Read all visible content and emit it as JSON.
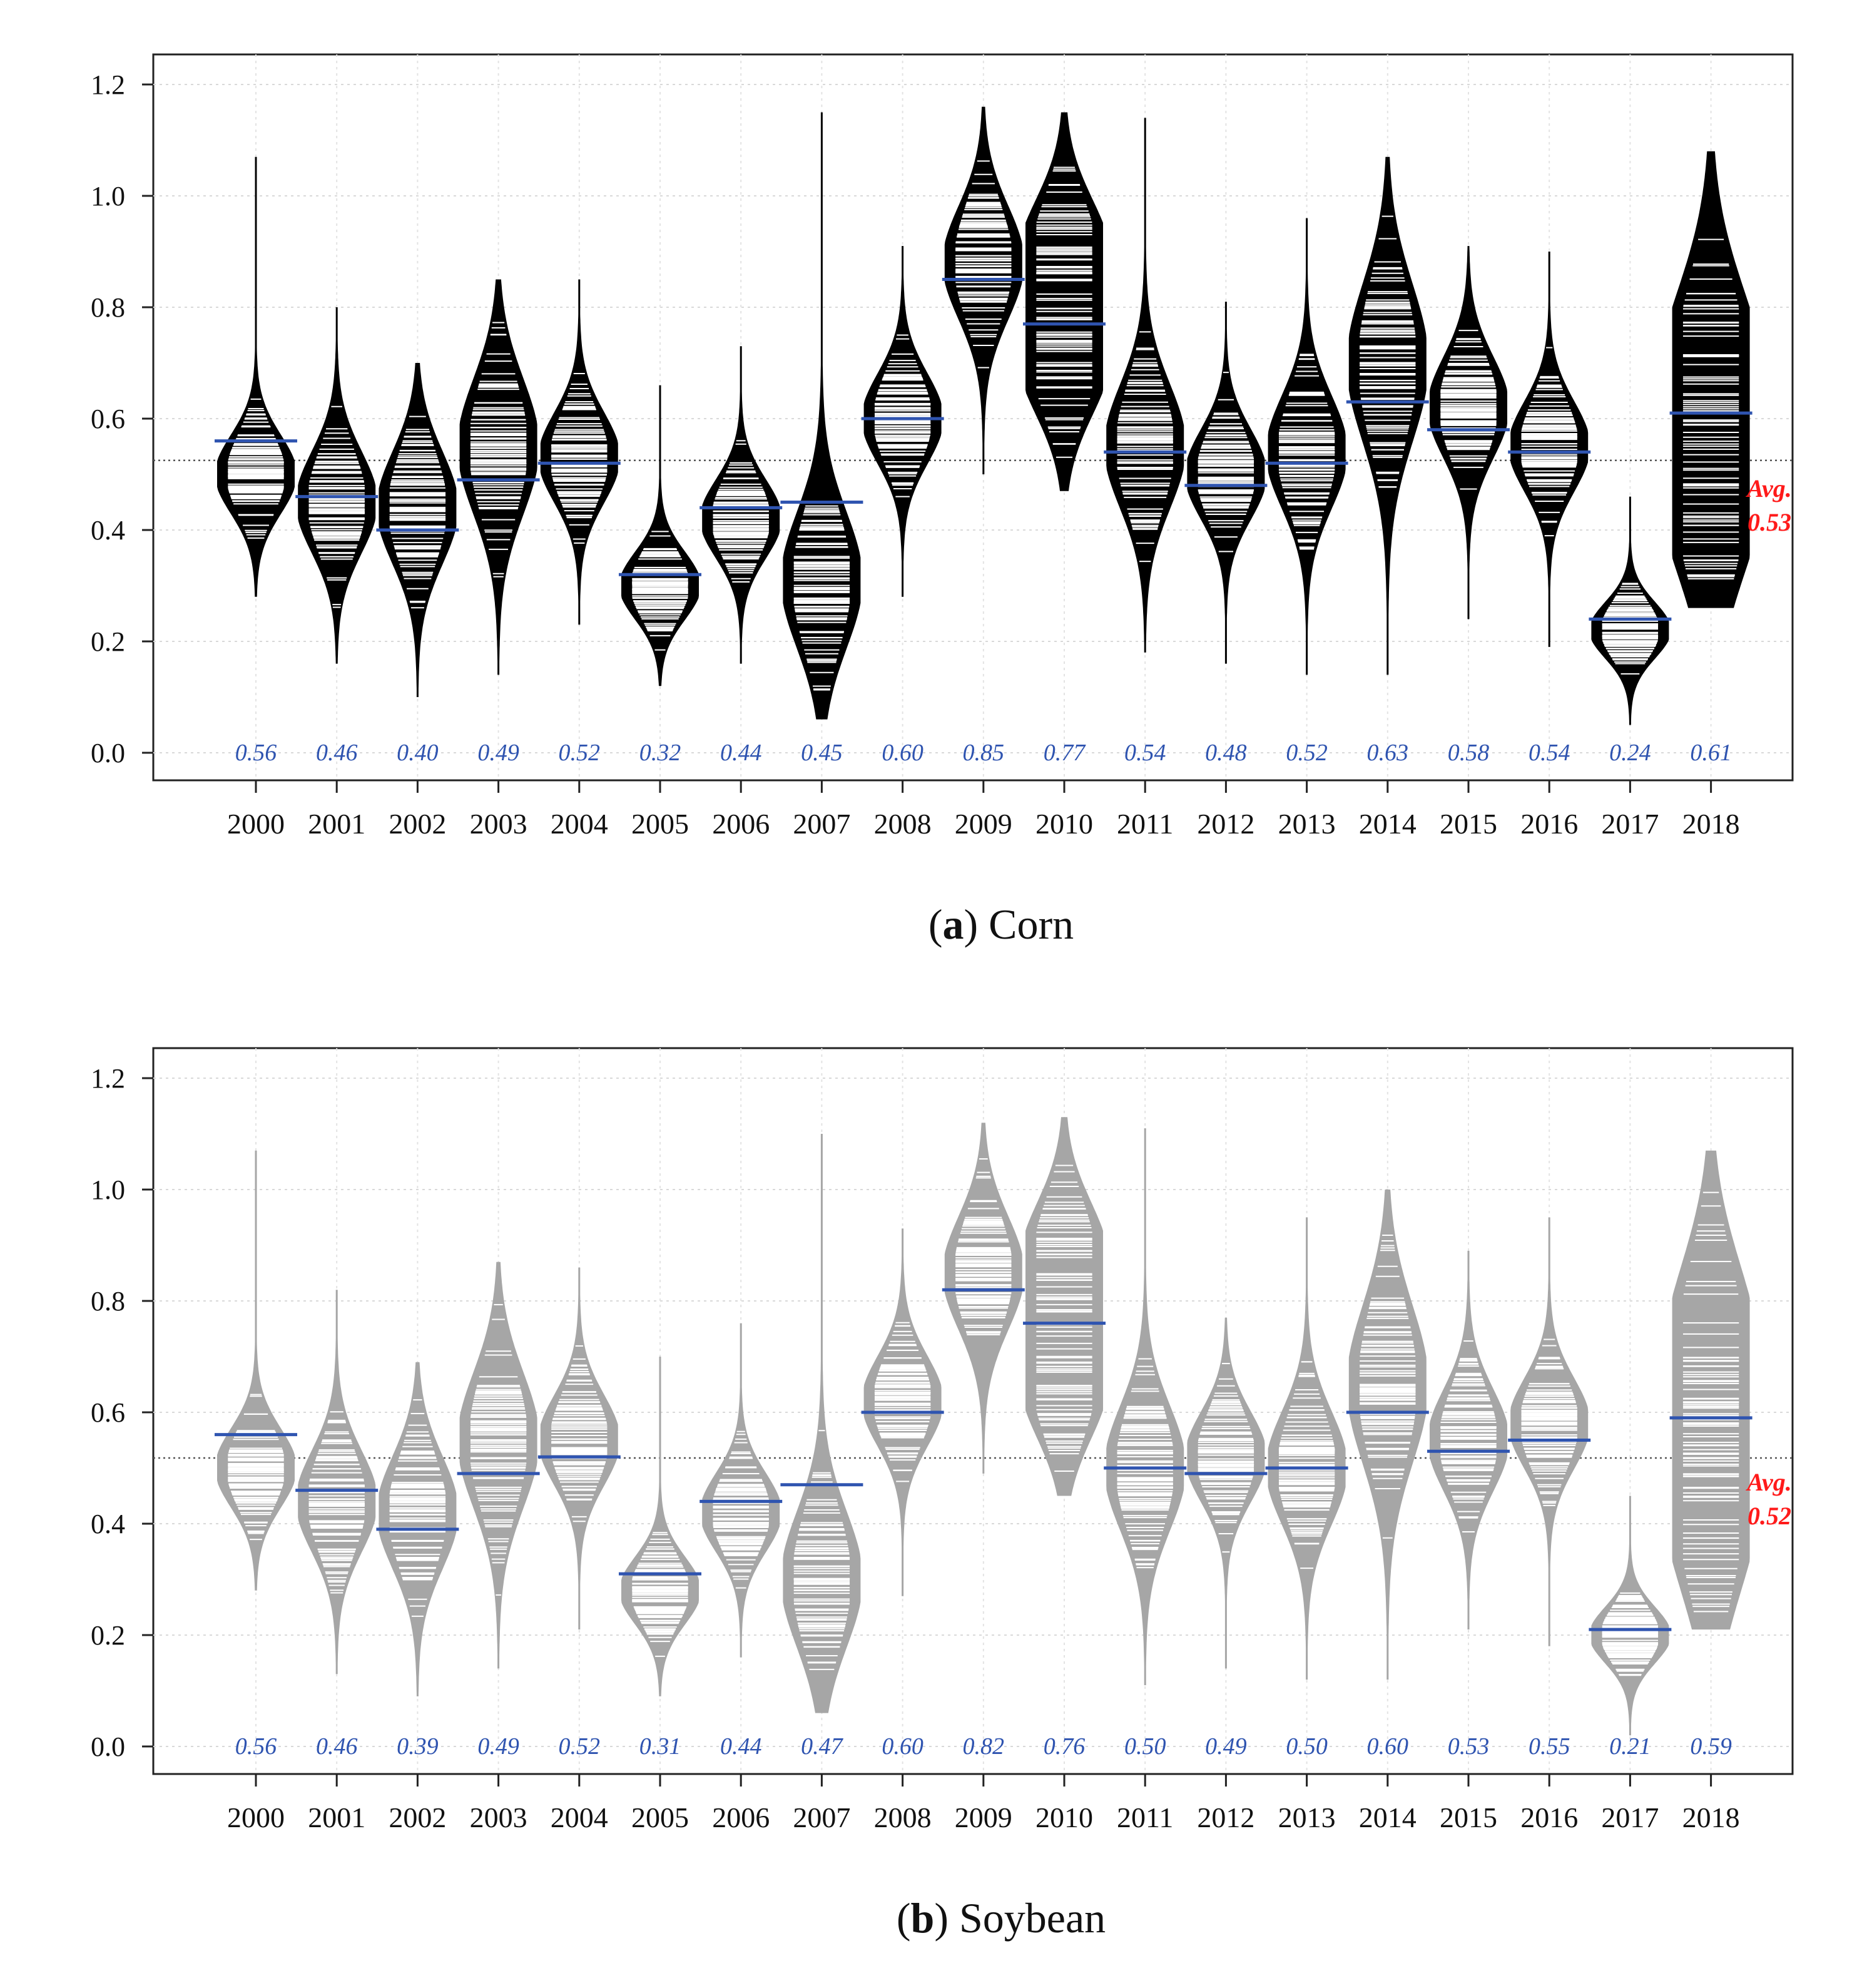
{
  "chart_data": [
    {
      "type": "beanplot",
      "caption_letter": "a",
      "caption_text": "Corn",
      "title": "",
      "xlabel": "",
      "ylabel": "",
      "ylim": [
        -0.05,
        1.25
      ],
      "yticks": [
        "0.0",
        "0.2",
        "0.4",
        "0.6",
        "0.8",
        "1.0",
        "1.2"
      ],
      "categories": [
        "2000",
        "2001",
        "2002",
        "2003",
        "2004",
        "2005",
        "2006",
        "2007",
        "2008",
        "2009",
        "2010",
        "2011",
        "2012",
        "2013",
        "2014",
        "2015",
        "2016",
        "2017",
        "2018"
      ],
      "means": [
        0.56,
        0.46,
        0.4,
        0.49,
        0.52,
        0.32,
        0.44,
        0.45,
        0.6,
        0.85,
        0.77,
        0.54,
        0.48,
        0.52,
        0.63,
        0.58,
        0.54,
        0.24,
        0.61
      ],
      "mean_labels": [
        "0.56",
        "0.46",
        "0.40",
        "0.49",
        "0.52",
        "0.32",
        "0.44",
        "0.45",
        "0.60",
        "0.85",
        "0.77",
        "0.54",
        "0.48",
        "0.52",
        "0.63",
        "0.58",
        "0.54",
        "0.24",
        "0.61"
      ],
      "ranges": [
        [
          0.28,
          1.07
        ],
        [
          0.16,
          0.8
        ],
        [
          0.1,
          0.7
        ],
        [
          0.14,
          0.85
        ],
        [
          0.23,
          0.85
        ],
        [
          0.12,
          0.66
        ],
        [
          0.16,
          0.73
        ],
        [
          0.06,
          1.15
        ],
        [
          0.28,
          0.91
        ],
        [
          0.5,
          1.16
        ],
        [
          0.47,
          1.15
        ],
        [
          0.18,
          1.14
        ],
        [
          0.16,
          0.81
        ],
        [
          0.14,
          0.96
        ],
        [
          0.14,
          1.07
        ],
        [
          0.24,
          0.91
        ],
        [
          0.19,
          0.9
        ],
        [
          0.05,
          0.46
        ],
        [
          0.26,
          1.08
        ]
      ],
      "modes": [
        [
          0.5
        ],
        [
          0.45
        ],
        [
          0.44
        ],
        [
          0.55
        ],
        [
          0.53
        ],
        [
          0.3
        ],
        [
          0.42
        ],
        [
          0.31
        ],
        [
          0.6
        ],
        [
          0.88
        ],
        [
          0.9,
          0.7
        ],
        [
          0.55
        ],
        [
          0.5
        ],
        [
          0.54
        ],
        [
          0.7
        ],
        [
          0.62
        ],
        [
          0.55
        ],
        [
          0.22
        ],
        [
          0.45,
          0.7
        ]
      ],
      "spread": [
        0.07,
        0.09,
        0.1,
        0.12,
        0.08,
        0.06,
        0.07,
        0.12,
        0.08,
        0.1,
        0.1,
        0.11,
        0.08,
        0.1,
        0.14,
        0.09,
        0.08,
        0.05,
        0.16
      ],
      "overall_avg": 0.525,
      "avg_label_line1": "Avg.",
      "avg_label_line2": "0.53",
      "colors": {
        "bean": "#000000",
        "mean_line": "#2f54b0",
        "avg_text": "#ff1a1a"
      }
    },
    {
      "type": "beanplot",
      "caption_letter": "b",
      "caption_text": "Soybean",
      "title": "",
      "xlabel": "",
      "ylabel": "",
      "ylim": [
        -0.05,
        1.25
      ],
      "yticks": [
        "0.0",
        "0.2",
        "0.4",
        "0.6",
        "0.8",
        "1.0",
        "1.2"
      ],
      "categories": [
        "2000",
        "2001",
        "2002",
        "2003",
        "2004",
        "2005",
        "2006",
        "2007",
        "2008",
        "2009",
        "2010",
        "2011",
        "2012",
        "2013",
        "2014",
        "2015",
        "2016",
        "2017",
        "2018"
      ],
      "means": [
        0.56,
        0.46,
        0.39,
        0.49,
        0.52,
        0.31,
        0.44,
        0.47,
        0.6,
        0.82,
        0.76,
        0.5,
        0.49,
        0.5,
        0.6,
        0.53,
        0.55,
        0.21,
        0.59
      ],
      "mean_labels": [
        "0.56",
        "0.46",
        "0.39",
        "0.49",
        "0.52",
        "0.31",
        "0.44",
        "0.47",
        "0.60",
        "0.82",
        "0.76",
        "0.50",
        "0.49",
        "0.50",
        "0.60",
        "0.53",
        "0.55",
        "0.21",
        "0.59"
      ],
      "ranges": [
        [
          0.28,
          1.07
        ],
        [
          0.13,
          0.82
        ],
        [
          0.09,
          0.69
        ],
        [
          0.14,
          0.87
        ],
        [
          0.21,
          0.86
        ],
        [
          0.09,
          0.7
        ],
        [
          0.16,
          0.76
        ],
        [
          0.06,
          1.1
        ],
        [
          0.27,
          0.93
        ],
        [
          0.49,
          1.12
        ],
        [
          0.45,
          1.13
        ],
        [
          0.11,
          1.11
        ],
        [
          0.14,
          0.77
        ],
        [
          0.12,
          0.95
        ],
        [
          0.12,
          1.0
        ],
        [
          0.21,
          0.89
        ],
        [
          0.18,
          0.95
        ],
        [
          0.02,
          0.45
        ],
        [
          0.21,
          1.07
        ]
      ],
      "modes": [
        [
          0.5
        ],
        [
          0.44
        ],
        [
          0.42
        ],
        [
          0.55
        ],
        [
          0.55
        ],
        [
          0.28
        ],
        [
          0.42
        ],
        [
          0.3
        ],
        [
          0.62
        ],
        [
          0.85
        ],
        [
          0.88,
          0.65
        ],
        [
          0.5
        ],
        [
          0.52
        ],
        [
          0.5
        ],
        [
          0.65
        ],
        [
          0.55
        ],
        [
          0.58
        ],
        [
          0.2
        ],
        [
          0.42,
          0.72
        ]
      ],
      "spread": [
        0.07,
        0.09,
        0.1,
        0.12,
        0.08,
        0.06,
        0.07,
        0.12,
        0.08,
        0.1,
        0.1,
        0.11,
        0.08,
        0.1,
        0.14,
        0.09,
        0.08,
        0.05,
        0.16
      ],
      "overall_avg": 0.518,
      "avg_label_line1": "Avg.",
      "avg_label_line2": "0.52",
      "colors": {
        "bean": "#a6a6a6",
        "mean_line": "#2f54b0",
        "avg_text": "#ff1a1a"
      }
    }
  ]
}
